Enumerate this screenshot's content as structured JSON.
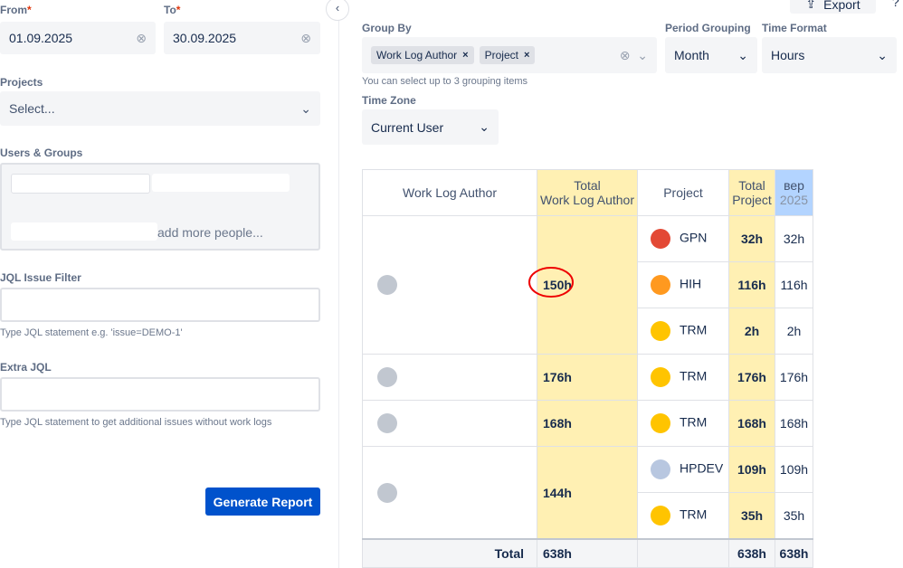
{
  "filters": {
    "from_label": "From",
    "to_label": "To",
    "required": "*",
    "from": "01.09.2025",
    "to": "30.09.2025",
    "projects_label": "Projects",
    "projects_placeholder": "Select...",
    "users_label": "Users & Groups",
    "users_placeholder": "add more people...",
    "jql_label": "JQL Issue Filter",
    "jql_hint": "Type JQL statement e.g. 'issue=DEMO-1'",
    "extra_jql_label": "Extra JQL",
    "extra_jql_hint": "Type JQL statement to get additional issues without work logs",
    "generate_button": "Generate Report"
  },
  "toolbar": {
    "export": "Export",
    "help": "?",
    "group_by_label": "Group By",
    "group_by": [
      "Work Log Author",
      "Project"
    ],
    "group_by_hint": "You can select up to 3 grouping items",
    "period_label": "Period Grouping",
    "period": "Month",
    "format_label": "Time Format",
    "format": "Hours",
    "timezone_label": "Time Zone",
    "timezone": "Current User"
  },
  "table": {
    "headers": {
      "author": "Work Log Author",
      "total_author": [
        "Total",
        "Work Log Author"
      ],
      "project": "Project",
      "total_project": [
        "Total",
        "Project"
      ],
      "period": [
        "вер",
        "2025"
      ]
    },
    "groups": [
      {
        "total": "150h",
        "projects": [
          {
            "key": "GPN",
            "total": "32h",
            "period": "32h"
          },
          {
            "key": "HIH",
            "total": "116h",
            "period": "116h"
          },
          {
            "key": "TRM",
            "total": "2h",
            "period": "2h"
          }
        ]
      },
      {
        "total": "176h",
        "projects": [
          {
            "key": "TRM",
            "total": "176h",
            "period": "176h"
          }
        ]
      },
      {
        "total": "168h",
        "projects": [
          {
            "key": "TRM",
            "total": "168h",
            "period": "168h"
          }
        ]
      },
      {
        "total": "144h",
        "projects": [
          {
            "key": "HPDEV",
            "total": "109h",
            "period": "109h"
          },
          {
            "key": "TRM",
            "total": "35h",
            "period": "35h"
          }
        ]
      }
    ],
    "footer": {
      "label": "Total",
      "total_author": "638h",
      "total_project": "638h",
      "period": "638h"
    }
  }
}
